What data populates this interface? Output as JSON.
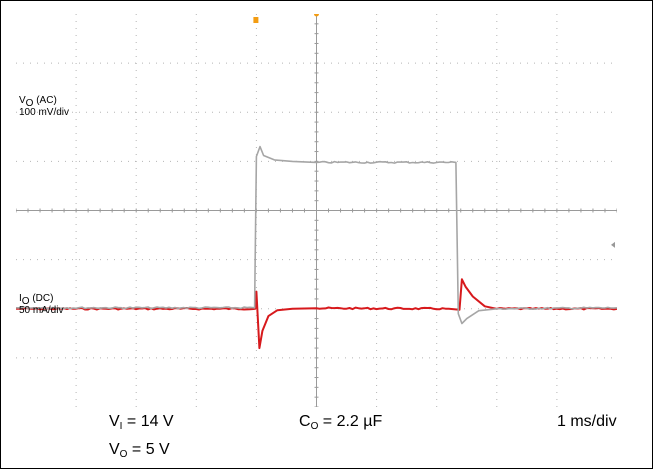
{
  "chart_data": {
    "type": "line",
    "grid": true,
    "x_divisions": 10,
    "y_divisions": 8,
    "series": [
      {
        "name_main": "V",
        "name_sub": "O",
        "name_suffix": " (AC)",
        "scale": "100 mV/div",
        "color": "#d7191c",
        "x": [
          0,
          3.98,
          4.0,
          4.05,
          4.1,
          4.2,
          4.35,
          4.6,
          5.0,
          7.2,
          7.38,
          7.42,
          7.48,
          7.6,
          7.8,
          8.0,
          10
        ],
        "y": [
          2.0,
          2.0,
          2.35,
          1.2,
          1.55,
          1.85,
          1.97,
          2.0,
          2.01,
          2.0,
          1.98,
          2.6,
          2.45,
          2.25,
          2.05,
          2.0,
          2.0
        ]
      },
      {
        "name_main": "I",
        "name_sub": "O",
        "name_suffix": " (DC)",
        "scale": "50 mA/div",
        "color": "#a6a6a6",
        "x": [
          0,
          3.97,
          4.0,
          4.06,
          4.12,
          4.3,
          4.6,
          5.0,
          7.32,
          7.36,
          7.42,
          7.5,
          7.7,
          8.0,
          10
        ],
        "y": [
          2.02,
          2.02,
          5.1,
          5.3,
          5.12,
          5.03,
          5.0,
          4.98,
          4.98,
          1.9,
          1.7,
          1.8,
          1.96,
          2.0,
          2.02
        ]
      }
    ],
    "xlim": [
      0,
      10
    ],
    "ylim": [
      0,
      8
    ]
  },
  "markers": {
    "trigger_color": "#f39c12"
  },
  "captions": {
    "vi_main": "V",
    "vi_sub": "I",
    "vi_value": " = 14 V",
    "co_main": "C",
    "co_sub": "O",
    "co_value": " = 2.2 µF",
    "timebase": "1 ms/div",
    "vo_main": "V",
    "vo_sub": "O",
    "vo_value": " = 5 V"
  }
}
